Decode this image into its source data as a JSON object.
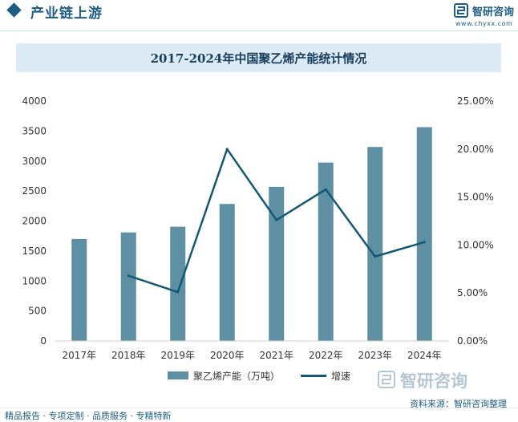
{
  "header": {
    "section_title": "产业链上游",
    "brand_name": "智研咨询",
    "brand_url": "www.chyxx.com"
  },
  "chart_data": {
    "type": "bar",
    "title": "2017-2024年中国聚乙烯产能统计情况",
    "categories": [
      "2017年",
      "2018年",
      "2019年",
      "2020年",
      "2021年",
      "2022年",
      "2023年",
      "2024年"
    ],
    "series": [
      {
        "name": "聚乙烯产能（万吨）",
        "type": "bar",
        "axis": "left",
        "color": "#5f8fa3",
        "values": [
          1700,
          1810,
          1905,
          2285,
          2570,
          2975,
          3235,
          3565
        ]
      },
      {
        "name": "增速",
        "type": "line",
        "axis": "right",
        "color": "#145876",
        "values": [
          null,
          6.8,
          5.1,
          20.0,
          12.6,
          15.8,
          8.8,
          10.3
        ]
      }
    ],
    "y_left": {
      "min": 0,
      "max": 4000,
      "ticks": [
        "0",
        "500",
        "1000",
        "1500",
        "2000",
        "2500",
        "3000",
        "3500",
        "4000"
      ]
    },
    "y_right": {
      "min": 0,
      "max": 25,
      "ticks": [
        "0.00%",
        "5.00%",
        "10.00%",
        "15.00%",
        "20.00%",
        "25.00%"
      ]
    },
    "legend": [
      "聚乙烯产能（万吨）",
      "增速"
    ]
  },
  "source": "资料来源：智研咨询整理",
  "source_brand": "智研咨询",
  "footer": "精品报告 · 专项定制 · 品质服务 · 专精特新"
}
